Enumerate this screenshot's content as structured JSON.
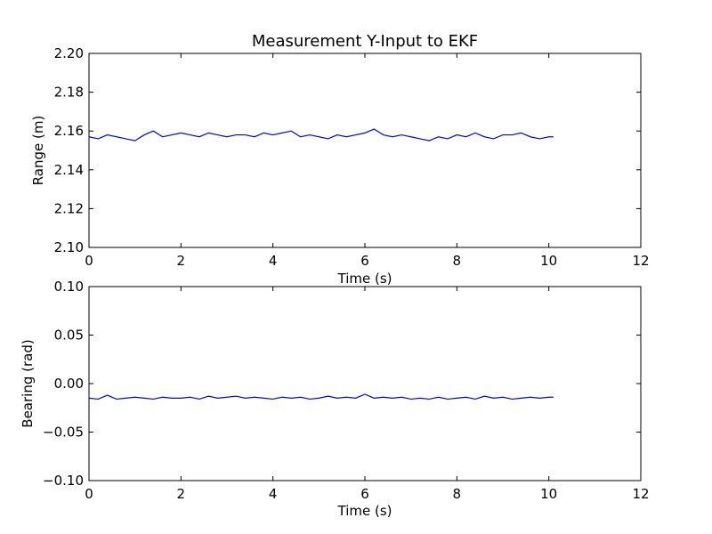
{
  "chart_data": [
    {
      "type": "line",
      "title": "Measurement Y-Input to EKF",
      "xlabel": "Time (s)",
      "ylabel": "Range (m)",
      "xlim": [
        0,
        12
      ],
      "ylim": [
        2.1,
        2.2
      ],
      "xticks": [
        "0",
        "2",
        "4",
        "6",
        "8",
        "10",
        "12"
      ],
      "yticks": [
        "2.10",
        "2.12",
        "2.14",
        "2.16",
        "2.18",
        "2.20"
      ],
      "grid": false,
      "color": "#0000ff",
      "series": [
        {
          "x": [
            0.0,
            0.2,
            0.4,
            0.6,
            0.8,
            1.0,
            1.2,
            1.4,
            1.6,
            1.8,
            2.0,
            2.2,
            2.4,
            2.6,
            2.8,
            3.0,
            3.2,
            3.4,
            3.6,
            3.8,
            4.0,
            4.2,
            4.4,
            4.6,
            4.8,
            5.0,
            5.2,
            5.4,
            5.6,
            5.8,
            6.0,
            6.2,
            6.4,
            6.6,
            6.8,
            7.0,
            7.2,
            7.4,
            7.6,
            7.8,
            8.0,
            8.2,
            8.4,
            8.6,
            8.8,
            9.0,
            9.2,
            9.4,
            9.6,
            9.8,
            10.0,
            10.1
          ],
          "values": [
            2.157,
            2.156,
            2.158,
            2.157,
            2.156,
            2.155,
            2.158,
            2.16,
            2.157,
            2.158,
            2.159,
            2.158,
            2.157,
            2.159,
            2.158,
            2.157,
            2.158,
            2.158,
            2.157,
            2.159,
            2.158,
            2.159,
            2.16,
            2.157,
            2.158,
            2.157,
            2.156,
            2.158,
            2.157,
            2.158,
            2.159,
            2.161,
            2.158,
            2.157,
            2.158,
            2.157,
            2.156,
            2.155,
            2.157,
            2.156,
            2.158,
            2.157,
            2.159,
            2.157,
            2.156,
            2.158,
            2.158,
            2.159,
            2.157,
            2.156,
            2.157,
            2.157
          ]
        }
      ]
    },
    {
      "type": "line",
      "title": "",
      "xlabel": "Time (s)",
      "ylabel": "Bearing (rad)",
      "xlim": [
        0,
        12
      ],
      "ylim": [
        -0.1,
        0.1
      ],
      "xticks": [
        "0",
        "2",
        "4",
        "6",
        "8",
        "10",
        "12"
      ],
      "yticks": [
        "−0.10",
        "−0.05",
        "0.00",
        "0.05",
        "0.10"
      ],
      "grid": false,
      "color": "#0000ff",
      "series": [
        {
          "x": [
            0.0,
            0.2,
            0.4,
            0.6,
            0.8,
            1.0,
            1.2,
            1.4,
            1.6,
            1.8,
            2.0,
            2.2,
            2.4,
            2.6,
            2.8,
            3.0,
            3.2,
            3.4,
            3.6,
            3.8,
            4.0,
            4.2,
            4.4,
            4.6,
            4.8,
            5.0,
            5.2,
            5.4,
            5.6,
            5.8,
            6.0,
            6.2,
            6.4,
            6.6,
            6.8,
            7.0,
            7.2,
            7.4,
            7.6,
            7.8,
            8.0,
            8.2,
            8.4,
            8.6,
            8.8,
            9.0,
            9.2,
            9.4,
            9.6,
            9.8,
            10.0,
            10.1
          ],
          "values": [
            -0.015,
            -0.016,
            -0.012,
            -0.016,
            -0.015,
            -0.014,
            -0.015,
            -0.016,
            -0.014,
            -0.015,
            -0.015,
            -0.014,
            -0.016,
            -0.013,
            -0.015,
            -0.014,
            -0.013,
            -0.015,
            -0.014,
            -0.015,
            -0.016,
            -0.014,
            -0.015,
            -0.014,
            -0.016,
            -0.015,
            -0.013,
            -0.015,
            -0.014,
            -0.015,
            -0.011,
            -0.015,
            -0.014,
            -0.015,
            -0.014,
            -0.016,
            -0.015,
            -0.016,
            -0.014,
            -0.016,
            -0.015,
            -0.014,
            -0.016,
            -0.013,
            -0.015,
            -0.014,
            -0.016,
            -0.015,
            -0.014,
            -0.015,
            -0.014,
            -0.014
          ]
        }
      ]
    }
  ]
}
